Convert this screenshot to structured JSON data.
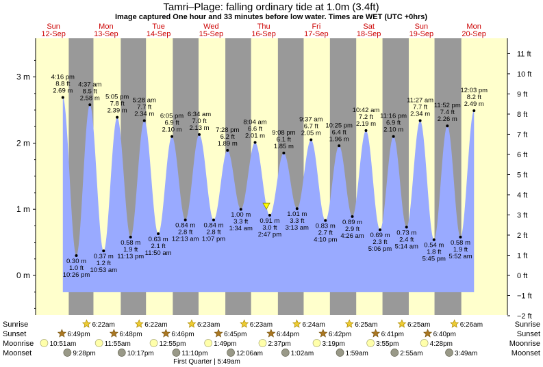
{
  "title": "Tamri–Plage: falling  ordinary tide at 1.0m (3.4ft)",
  "subtitle": "Image captured One hour and 33 minutes before low water. Times are WET (UTC +0hrs)",
  "days": [
    {
      "dow": "Sun",
      "date": "12-Sep",
      "weekend": true
    },
    {
      "dow": "Mon",
      "date": "13-Sep",
      "weekend": false
    },
    {
      "dow": "Tue",
      "date": "14-Sep",
      "weekend": false
    },
    {
      "dow": "Wed",
      "date": "15-Sep",
      "weekend": false
    },
    {
      "dow": "Thu",
      "date": "16-Sep",
      "weekend": false
    },
    {
      "dow": "Fri",
      "date": "17-Sep",
      "weekend": false
    },
    {
      "dow": "Sat",
      "date": "18-Sep",
      "weekend": true
    },
    {
      "dow": "Sun",
      "date": "19-Sep",
      "weekend": true
    },
    {
      "dow": "Mon",
      "date": "20-Sep",
      "weekend": false
    }
  ],
  "chart_data": {
    "type": "area",
    "x_unit": "days from 12-Sep 00:00 WET",
    "y_unit": "m",
    "ylim": [
      -0.73,
      3.47
    ],
    "y_left_ticks": [
      "0 m",
      "1 m",
      "2 m",
      "3 m"
    ],
    "y_left_values": [
      0,
      1,
      2,
      3
    ],
    "y_right_ticks": [
      "−2 ft",
      "−1 ft",
      "0 ft",
      "1 ft",
      "2 ft",
      "3 ft",
      "4 ft",
      "5 ft",
      "6 ft",
      "7 ft",
      "8 ft",
      "9 ft",
      "10 ft",
      "11 ft"
    ],
    "y_right_values_ft": [
      -2,
      -1,
      0,
      1,
      2,
      3,
      4,
      5,
      6,
      7,
      8,
      9,
      10,
      11
    ],
    "night_intervals": [
      [
        0.79,
        1.26
      ],
      [
        1.78,
        2.26
      ],
      [
        2.77,
        3.26
      ],
      [
        3.77,
        4.26
      ],
      [
        4.77,
        5.26
      ],
      [
        5.76,
        6.26
      ],
      [
        6.76,
        7.26
      ],
      [
        7.75,
        8.26
      ]
    ],
    "tides": [
      {
        "x": 0.678,
        "m": 2.69,
        "ft": "8.8 ft",
        "m_label": "2.69 m",
        "time": "4:16 pm",
        "type": "high"
      },
      {
        "x": 0.935,
        "m": 0.3,
        "ft": "1.0 ft",
        "m_label": "0.30 m",
        "time": "10:26 pm",
        "type": "low"
      },
      {
        "x": 1.192,
        "m": 2.58,
        "ft": "8.5 ft",
        "m_label": "2.58 m",
        "time": "4:37 am",
        "type": "high"
      },
      {
        "x": 1.453,
        "m": 0.37,
        "ft": "1.2 ft",
        "m_label": "0.37 m",
        "time": "10:53 am",
        "type": "low"
      },
      {
        "x": 1.712,
        "m": 2.39,
        "ft": "7.8 ft",
        "m_label": "2.39 m",
        "time": "5:05 pm",
        "type": "high"
      },
      {
        "x": 1.967,
        "m": 0.58,
        "ft": "1.9 ft",
        "m_label": "0.58 m",
        "time": "11:13 pm",
        "type": "low"
      },
      {
        "x": 2.228,
        "m": 2.34,
        "ft": "7.7 ft",
        "m_label": "2.34 m",
        "time": "5:28 am",
        "type": "high"
      },
      {
        "x": 2.493,
        "m": 0.63,
        "ft": "2.1 ft",
        "m_label": "0.63 m",
        "time": "11:50 am",
        "type": "low"
      },
      {
        "x": 2.753,
        "m": 2.1,
        "ft": "6.9 ft",
        "m_label": "2.10 m",
        "time": "6:05 pm",
        "type": "high"
      },
      {
        "x": 3.009,
        "m": 0.84,
        "ft": "2.8 ft",
        "m_label": "0.84 m",
        "time": "12:13 am",
        "type": "low"
      },
      {
        "x": 3.274,
        "m": 2.13,
        "ft": "7.0 ft",
        "m_label": "2.13 m",
        "time": "6:34 am",
        "type": "high"
      },
      {
        "x": 3.547,
        "m": 0.84,
        "ft": "2.8 ft",
        "m_label": "0.84 m",
        "time": "1:07 pm",
        "type": "low"
      },
      {
        "x": 3.811,
        "m": 1.89,
        "ft": "6.2 ft",
        "m_label": "1.89 m",
        "time": "7:28 pm",
        "type": "high"
      },
      {
        "x": 4.065,
        "m": 1.0,
        "ft": "3.3 ft",
        "m_label": "1.00 m",
        "time": "1:34 am",
        "type": "low"
      },
      {
        "x": 4.336,
        "m": 2.01,
        "ft": "6.6 ft",
        "m_label": "2.01 m",
        "time": "8:04 am",
        "type": "high"
      },
      {
        "x": 4.615,
        "m": 0.91,
        "ft": "3.0 ft",
        "m_label": "0.91 m",
        "time": "2:47 pm",
        "type": "low"
      },
      {
        "x": 4.881,
        "m": 1.85,
        "ft": "6.1 ft",
        "m_label": "1.85 m",
        "time": "9:08 pm",
        "type": "high"
      },
      {
        "x": 5.134,
        "m": 1.01,
        "ft": "3.3 ft",
        "m_label": "1.01 m",
        "time": "3:13 am",
        "type": "low"
      },
      {
        "x": 5.401,
        "m": 2.05,
        "ft": "6.7 ft",
        "m_label": "2.05 m",
        "time": "9:37 am",
        "type": "high"
      },
      {
        "x": 5.674,
        "m": 0.83,
        "ft": "2.7 ft",
        "m_label": "0.83 m",
        "time": "4:10 pm",
        "type": "low"
      },
      {
        "x": 5.934,
        "m": 1.96,
        "ft": "6.4 ft",
        "m_label": "1.96 m",
        "time": "10:25 pm",
        "type": "high"
      },
      {
        "x": 6.186,
        "m": 0.89,
        "ft": "2.9 ft",
        "m_label": "0.89 m",
        "time": "4:26 am",
        "type": "low"
      },
      {
        "x": 6.446,
        "m": 2.19,
        "ft": "7.2 ft",
        "m_label": "2.19 m",
        "time": "10:42 am",
        "type": "high"
      },
      {
        "x": 6.713,
        "m": 0.69,
        "ft": "2.3 ft",
        "m_label": "0.69 m",
        "time": "5:06 pm",
        "type": "low"
      },
      {
        "x": 6.969,
        "m": 2.1,
        "ft": "6.9 ft",
        "m_label": "2.10 m",
        "time": "11:16 pm",
        "type": "high"
      },
      {
        "x": 7.218,
        "m": 0.73,
        "ft": "2.4 ft",
        "m_label": "0.73 m",
        "time": "5:14 am",
        "type": "low"
      },
      {
        "x": 7.477,
        "m": 2.34,
        "ft": "7.7 ft",
        "m_label": "2.34 m",
        "time": "11:27 am",
        "type": "high"
      },
      {
        "x": 7.74,
        "m": 0.54,
        "ft": "1.8 ft",
        "m_label": "0.54 m",
        "time": "5:45 pm",
        "type": "low"
      },
      {
        "x": 7.994,
        "m": 2.26,
        "ft": "7.4 ft",
        "m_label": "2.26 m",
        "time": "11:52 pm",
        "type": "high"
      },
      {
        "x": 8.244,
        "m": 0.58,
        "ft": "1.9 ft",
        "m_label": "0.58 m",
        "time": "5:52 am",
        "type": "low"
      },
      {
        "x": 8.502,
        "m": 2.49,
        "ft": "8.2 ft",
        "m_label": "2.49 m",
        "time": "12:03 pm",
        "type": "high"
      }
    ],
    "current": {
      "x": 4.551,
      "m": 1.0
    }
  },
  "rows": {
    "sunrise_label": "Sunrise",
    "sunset_label": "Sunset",
    "moonrise_label": "Moonrise",
    "moonset_label": "Moonset",
    "sunrise": [
      {
        "x": 1.26,
        "time": "6:22am"
      },
      {
        "x": 2.26,
        "time": "6:22am"
      },
      {
        "x": 3.26,
        "time": "6:23am"
      },
      {
        "x": 4.26,
        "time": "6:23am"
      },
      {
        "x": 5.26,
        "time": "6:24am"
      },
      {
        "x": 6.26,
        "time": "6:25am"
      },
      {
        "x": 7.26,
        "time": "6:25am"
      },
      {
        "x": 8.26,
        "time": "6:26am"
      }
    ],
    "sunset": [
      {
        "x": 0.79,
        "time": "6:49pm"
      },
      {
        "x": 1.78,
        "time": "6:48pm"
      },
      {
        "x": 2.77,
        "time": "6:46pm"
      },
      {
        "x": 3.77,
        "time": "6:45pm"
      },
      {
        "x": 4.77,
        "time": "6:44pm"
      },
      {
        "x": 5.76,
        "time": "6:42pm"
      },
      {
        "x": 6.76,
        "time": "6:41pm"
      },
      {
        "x": 7.75,
        "time": "6:40pm"
      }
    ],
    "moonrise": [
      {
        "x": 0.452,
        "time": "10:51am"
      },
      {
        "x": 1.497,
        "time": "11:55am"
      },
      {
        "x": 2.538,
        "time": "12:55pm"
      },
      {
        "x": 3.575,
        "time": "1:49pm"
      },
      {
        "x": 4.609,
        "time": "2:37pm"
      },
      {
        "x": 5.639,
        "time": "3:19pm"
      },
      {
        "x": 6.663,
        "time": "3:55pm"
      },
      {
        "x": 7.686,
        "time": "4:28pm"
      }
    ],
    "moonset": [
      {
        "x": 0.894,
        "time": "9:28pm"
      },
      {
        "x": 1.929,
        "time": "10:17pm"
      },
      {
        "x": 2.966,
        "time": "11:10pm"
      },
      {
        "x": 4.004,
        "time": "12:06am"
      },
      {
        "x": 5.043,
        "time": "1:02am"
      },
      {
        "x": 6.082,
        "time": "1:59am"
      },
      {
        "x": 7.121,
        "time": "2:55am"
      },
      {
        "x": 8.16,
        "time": "3:49am"
      }
    ],
    "moon_phase": "First Quarter | 5:49am"
  },
  "colors": {
    "day": "#ffffcc",
    "night": "#999999",
    "water": "#99aaff",
    "day_label": "#cc0000",
    "sun": "#eecc33",
    "sunset": "#aa7722",
    "moonrise": "#ffffaa",
    "moonset": "#999988",
    "marker": "#ffff00"
  }
}
